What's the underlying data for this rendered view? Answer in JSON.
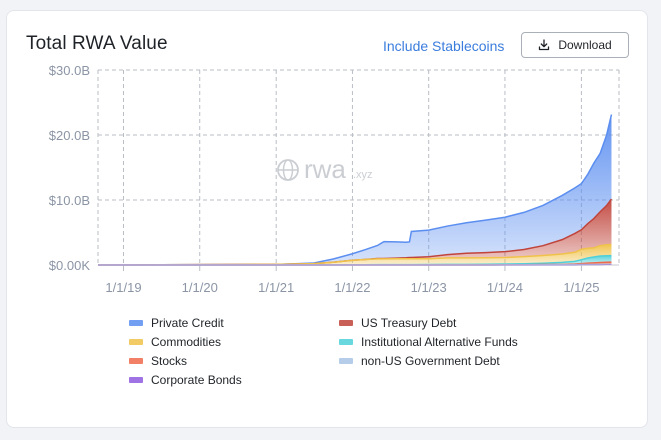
{
  "header": {
    "title": "Total RWA Value",
    "stablecoins_label": "Include Stablecoins",
    "download_label": "Download"
  },
  "watermark": {
    "brand": "rwa",
    "suffix": ".xyz"
  },
  "colors": {
    "grid": "#b9bec6",
    "axis_text": "#8b95a5"
  },
  "chart_data": {
    "type": "area",
    "stacked": true,
    "title": "Total RWA Value",
    "xlabel": "",
    "ylabel": "",
    "y_ticks": [
      "$0.00K",
      "$10.0B",
      "$20.0B",
      "$30.0B"
    ],
    "x_ticks": [
      "1/1/19",
      "1/1/20",
      "1/1/21",
      "1/1/22",
      "1/1/23",
      "1/1/24",
      "1/1/25"
    ],
    "x_range": [
      "2018-09-01",
      "2025-06-30"
    ],
    "ylim": [
      0,
      30
    ],
    "y_unit": "B",
    "grid": true,
    "legend_position": "bottom",
    "x": [
      "2018-09-01",
      "2019-01-01",
      "2019-07-01",
      "2020-01-01",
      "2020-07-01",
      "2021-01-01",
      "2021-04-01",
      "2021-07-01",
      "2021-10-01",
      "2022-01-01",
      "2022-03-01",
      "2022-05-01",
      "2022-06-01",
      "2022-08-01",
      "2022-09-15",
      "2022-10-01",
      "2022-10-10",
      "2023-01-01",
      "2023-04-01",
      "2023-07-01",
      "2023-10-01",
      "2024-01-01",
      "2024-04-01",
      "2024-07-01",
      "2024-10-01",
      "2024-12-01",
      "2025-01-01",
      "2025-02-01",
      "2025-03-01",
      "2025-04-01",
      "2025-05-01",
      "2025-05-25"
    ],
    "series": [
      {
        "name": "Corporate Bonds",
        "color": "#8f5ae0",
        "values": [
          0,
          0,
          0,
          0,
          0,
          0,
          0,
          0,
          0,
          0,
          0,
          0,
          0,
          0,
          0,
          0,
          0,
          0,
          0,
          0,
          0,
          0,
          0,
          0.01,
          0.01,
          0.01,
          0.02,
          0.02,
          0.02,
          0.02,
          0.03,
          0.03
        ]
      },
      {
        "name": "non-US Government Debt",
        "color": "#a9c4e6",
        "values": [
          0,
          0,
          0,
          0,
          0,
          0,
          0,
          0,
          0,
          0,
          0,
          0,
          0,
          0,
          0,
          0,
          0,
          0,
          0.01,
          0.01,
          0.01,
          0.02,
          0.02,
          0.03,
          0.04,
          0.05,
          0.05,
          0.06,
          0.06,
          0.07,
          0.07,
          0.07
        ]
      },
      {
        "name": "Stocks",
        "color": "#f06a4b",
        "values": [
          0,
          0,
          0,
          0,
          0,
          0,
          0,
          0,
          0,
          0,
          0,
          0,
          0,
          0,
          0,
          0,
          0,
          0,
          0,
          0,
          0,
          0.01,
          0.02,
          0.03,
          0.05,
          0.1,
          0.15,
          0.2,
          0.25,
          0.3,
          0.32,
          0.35
        ]
      },
      {
        "name": "Institutional Alternative Funds",
        "color": "#4fd0d8",
        "values": [
          0,
          0,
          0,
          0,
          0,
          0,
          0,
          0.01,
          0.02,
          0.03,
          0.04,
          0.05,
          0.05,
          0.06,
          0.06,
          0.06,
          0.06,
          0.07,
          0.08,
          0.09,
          0.1,
          0.12,
          0.15,
          0.2,
          0.3,
          0.4,
          0.6,
          0.8,
          0.9,
          1.0,
          1.0,
          1.0
        ]
      },
      {
        "name": "Commodities",
        "color": "#f0c24a",
        "values": [
          0,
          0.02,
          0.04,
          0.05,
          0.08,
          0.1,
          0.15,
          0.2,
          0.4,
          0.7,
          0.8,
          0.9,
          0.9,
          0.9,
          0.9,
          0.9,
          0.9,
          0.9,
          1.0,
          1.0,
          1.0,
          1.0,
          1.1,
          1.2,
          1.3,
          1.4,
          1.6,
          1.5,
          1.4,
          1.6,
          1.7,
          1.7
        ]
      },
      {
        "name": "US Treasury Debt",
        "color": "#c0443b",
        "values": [
          0,
          0,
          0,
          0,
          0,
          0,
          0,
          0,
          0,
          0,
          0,
          0.05,
          0.05,
          0.1,
          0.15,
          0.2,
          0.2,
          0.3,
          0.5,
          0.7,
          0.8,
          0.9,
          1.1,
          1.5,
          2.2,
          2.9,
          3.0,
          3.8,
          4.5,
          5.2,
          6.0,
          7.0
        ]
      },
      {
        "name": "Private Credit",
        "color": "#5b8ef0",
        "values": [
          0,
          0,
          0,
          0,
          0,
          0,
          0.05,
          0.1,
          0.5,
          1.0,
          1.5,
          2.0,
          2.6,
          2.5,
          2.4,
          2.4,
          4.0,
          4.1,
          4.4,
          4.7,
          5.0,
          5.3,
          5.7,
          6.2,
          6.8,
          7.0,
          7.1,
          7.6,
          8.5,
          9.0,
          10.8,
          13.0
        ]
      }
    ],
    "legend": [
      {
        "name": "Private Credit",
        "color": "#5b8ef0"
      },
      {
        "name": "US Treasury Debt",
        "color": "#c0443b"
      },
      {
        "name": "Commodities",
        "color": "#f0c24a"
      },
      {
        "name": "Institutional Alternative Funds",
        "color": "#4fd0d8"
      },
      {
        "name": "Stocks",
        "color": "#f06a4b"
      },
      {
        "name": "non-US Government Debt",
        "color": "#a9c4e6"
      },
      {
        "name": "Corporate Bonds",
        "color": "#8f5ae0"
      }
    ]
  }
}
